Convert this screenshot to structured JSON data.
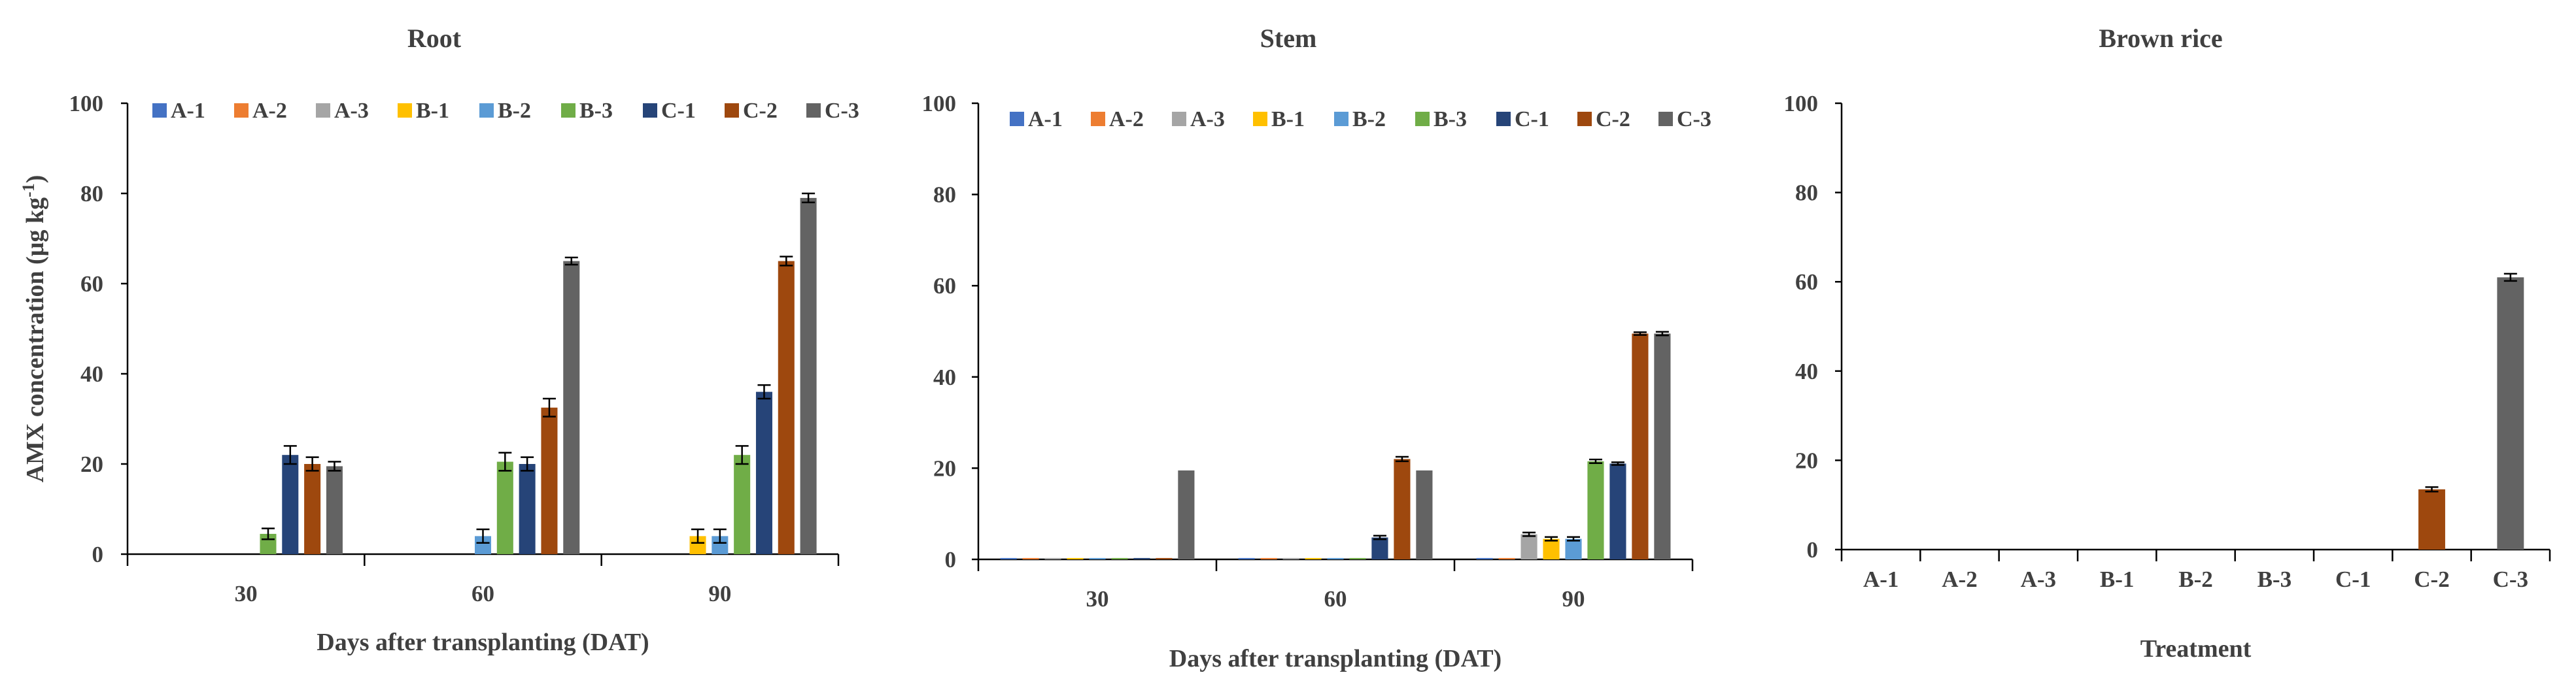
{
  "chart_data": [
    {
      "type": "bar",
      "title": "Root",
      "xlabel": "Days after transplanting (DAT)",
      "ylabel": "AMX concentration (μg kg-1)",
      "ylim": [
        0,
        100
      ],
      "yticks": [
        0,
        20,
        40,
        60,
        80,
        100
      ],
      "categories": [
        "30",
        "60",
        "90"
      ],
      "legend": "top",
      "series": [
        {
          "name": "A-1",
          "values": [
            0,
            0,
            0
          ],
          "errors": [
            0,
            0,
            0
          ]
        },
        {
          "name": "A-2",
          "values": [
            0,
            0,
            0
          ],
          "errors": [
            0,
            0,
            0
          ]
        },
        {
          "name": "A-3",
          "values": [
            0,
            0,
            0
          ],
          "errors": [
            0,
            0,
            0
          ]
        },
        {
          "name": "B-1",
          "values": [
            0,
            0,
            4
          ],
          "errors": [
            0,
            0,
            1.5
          ]
        },
        {
          "name": "B-2",
          "values": [
            0,
            4,
            4
          ],
          "errors": [
            0,
            1.5,
            1.5
          ]
        },
        {
          "name": "B-3",
          "values": [
            4.5,
            20.5,
            22
          ],
          "errors": [
            1.2,
            2,
            2
          ]
        },
        {
          "name": "C-1",
          "values": [
            22,
            20,
            36
          ],
          "errors": [
            2,
            1.5,
            1.5
          ]
        },
        {
          "name": "C-2",
          "values": [
            20,
            32.5,
            65
          ],
          "errors": [
            1.5,
            2,
            1
          ]
        },
        {
          "name": "C-3",
          "values": [
            19.5,
            65,
            79
          ],
          "errors": [
            1,
            0.8,
            1
          ]
        }
      ]
    },
    {
      "type": "bar",
      "title": "Stem",
      "xlabel": "Days after transplanting (DAT)",
      "ylabel": "",
      "ylim": [
        0,
        100
      ],
      "yticks": [
        0,
        20,
        40,
        60,
        80,
        100
      ],
      "categories": [
        "30",
        "60",
        "90"
      ],
      "legend": "top",
      "series": [
        {
          "name": "A-1",
          "values": [
            0.3,
            0.3,
            0.3
          ],
          "errors": [
            0,
            0,
            0
          ]
        },
        {
          "name": "A-2",
          "values": [
            0.3,
            0.3,
            0.3
          ],
          "errors": [
            0,
            0,
            0
          ]
        },
        {
          "name": "A-3",
          "values": [
            0.3,
            0.3,
            5.5
          ],
          "errors": [
            0,
            0,
            0.4
          ]
        },
        {
          "name": "B-1",
          "values": [
            0.3,
            0.3,
            4.5
          ],
          "errors": [
            0,
            0,
            0.4
          ]
        },
        {
          "name": "B-2",
          "values": [
            0.3,
            0.3,
            4.5
          ],
          "errors": [
            0,
            0,
            0.4
          ]
        },
        {
          "name": "B-3",
          "values": [
            0.3,
            0.3,
            21.5
          ],
          "errors": [
            0,
            0,
            0.4
          ]
        },
        {
          "name": "C-1",
          "values": [
            0.3,
            4.8,
            21
          ],
          "errors": [
            0,
            0.4,
            0.3
          ]
        },
        {
          "name": "C-2",
          "values": [
            0.3,
            22,
            49.5
          ],
          "errors": [
            0,
            0.5,
            0.3
          ]
        },
        {
          "name": "C-3",
          "values": [
            19.5,
            19.5,
            49.5
          ],
          "errors": [
            0,
            0,
            0.4
          ]
        }
      ]
    },
    {
      "type": "bar",
      "title": "Brown rice",
      "xlabel": "Treatment",
      "ylabel": "",
      "ylim": [
        0,
        100
      ],
      "yticks": [
        0,
        20,
        40,
        60,
        80,
        100
      ],
      "categories": [
        "A-1",
        "A-2",
        "A-3",
        "B-1",
        "B-2",
        "B-3",
        "C-1",
        "C-2",
        "C-3"
      ],
      "values": [
        0,
        0,
        0,
        0,
        0,
        0,
        0,
        13.5,
        61
      ],
      "errors": [
        0,
        0,
        0,
        0,
        0,
        0,
        0,
        0.5,
        0.8
      ],
      "colors": [
        "#4472C4",
        "#ED7D31",
        "#A5A5A5",
        "#FFC000",
        "#5B9BD5",
        "#70AD47",
        "#264478",
        "#9E480E",
        "#636363"
      ]
    }
  ],
  "colors": [
    "#4472C4",
    "#ED7D31",
    "#A5A5A5",
    "#FFC000",
    "#5B9BD5",
    "#70AD47",
    "#264478",
    "#9E480E",
    "#636363"
  ]
}
